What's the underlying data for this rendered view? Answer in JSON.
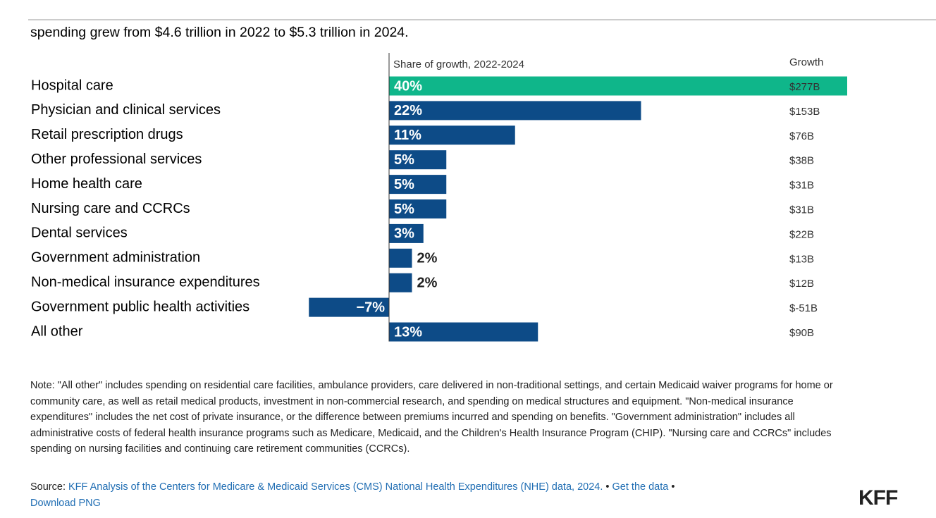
{
  "subtitle": "spending grew from $4.6 trillion in 2022 to $5.3 trillion in 2024.",
  "chart_data": {
    "type": "bar",
    "column_title": "Share of growth, 2022-2024",
    "categories": [
      "Hospital care",
      "Physician and clinical services",
      "Retail prescription drugs",
      "Other professional services",
      "Home health care",
      "Nursing care and CCRCs",
      "Dental services",
      "Government administration",
      "Non-medical insurance expenditures",
      "Government public health activities",
      "All other"
    ],
    "values": [
      40,
      22,
      11,
      5,
      5,
      5,
      3,
      2,
      2,
      -7,
      13
    ],
    "value_labels": [
      "40%",
      "22%",
      "11%",
      "5%",
      "5%",
      "5%",
      "3%",
      "2%",
      "2%",
      "−7%",
      "13%"
    ],
    "colors": [
      "#0fb68a",
      "#0d4b87",
      "#0d4b87",
      "#0d4b87",
      "#0d4b87",
      "#0d4b87",
      "#0d4b87",
      "#0d4b87",
      "#0d4b87",
      "#0d4b87",
      "#0d4b87"
    ],
    "growth": {
      "title": "Growth",
      "values": [
        277,
        153,
        76,
        38,
        31,
        31,
        22,
        13,
        12,
        -51,
        90
      ],
      "value_labels": [
        "$277B",
        "$153B",
        "$76B",
        "$38B",
        "$31B",
        "$31B",
        "$22B",
        "$13B",
        "$12B",
        "$-51B",
        "$90B"
      ]
    }
  },
  "note": "Note: \"All other\" includes spending on residential care facilities, ambulance providers, care delivered in non-traditional settings, and certain Medicaid waiver programs for home or community care, as well as retail medical products, investment in non-commercial research, and spending on medical structures and equipment. \"Non-medical insurance expenditures\" includes the net cost of private insurance, or the difference between premiums incurred and spending on benefits. \"Government administration\" includes all administrative costs of federal health insurance programs such as Medicare, Medicaid, and the Children's Health Insurance Program (CHIP). \"Nursing care and CCRCs\" includes spending on nursing facilities and continuing care retirement communities (CCRCs).",
  "source": {
    "label": "Source:",
    "link": "KFF Analysis of the Centers for Medicare & Medicaid Services (CMS) National Health Expenditures (NHE) data, 2024.",
    "separator": "•",
    "get_data": "Get the data",
    "download": "Download PNG"
  },
  "logo": "KFF"
}
